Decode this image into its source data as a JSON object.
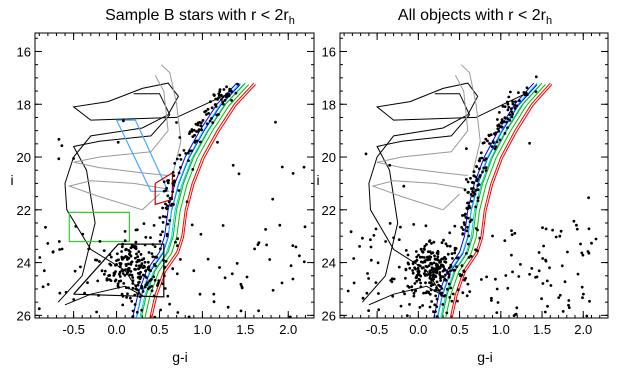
{
  "figure": {
    "panels": [
      {
        "title": "Sample B stars with r < 2r",
        "title_subscript": "h",
        "xlabel": "g-i",
        "ylabel": "i"
      },
      {
        "title": "All objects with r < 2r",
        "title_subscript": "h",
        "xlabel": "g-i",
        "ylabel": "i"
      }
    ]
  },
  "chart_data": [
    {
      "type": "scatter",
      "title": "Sample B stars with r < 2rh",
      "xlabel": "g-i",
      "ylabel": "i",
      "xlim": [
        -0.95,
        2.3
      ],
      "ylim": [
        26.1,
        15.3
      ],
      "y_inverted": true,
      "x_ticks": [
        -0.5,
        0.0,
        0.5,
        1.0,
        1.5,
        2.0
      ],
      "x_tick_labels": [
        "-0.5",
        "0.0",
        "0.5",
        "1.0",
        "1.5",
        "2.0"
      ],
      "y_ticks": [
        16,
        18,
        20,
        22,
        24,
        26
      ],
      "y_tick_labels": [
        "16",
        "18",
        "20",
        "22",
        "24",
        "26"
      ],
      "points": {
        "n_approx": 420,
        "sequence_turnoff": [
          0.2,
          24.1
        ],
        "red_giant_branch": [
          [
            0.55,
            23.0
          ],
          [
            0.6,
            22.0
          ],
          [
            0.68,
            21.0
          ],
          [
            0.78,
            20.0
          ],
          [
            0.95,
            19.0
          ],
          [
            1.15,
            18.0
          ],
          [
            1.35,
            17.3
          ]
        ],
        "field_scatter_xrange": [
          -0.9,
          2.2
        ]
      },
      "isochrones": {
        "black_tracks": 4,
        "gray_tracks": 3,
        "colored_rgb_models": [
          "#0000ff",
          "#00d0ff",
          "#00c000",
          "#ff0000"
        ]
      },
      "selection_boxes": [
        {
          "name": "blue box",
          "color": "#4aa8ff",
          "vertices": [
            [
              0.0,
              18.6
            ],
            [
              0.22,
              18.6
            ],
            [
              0.6,
              21.3
            ],
            [
              0.4,
              21.3
            ]
          ]
        },
        {
          "name": "red box",
          "color": "#cc0000",
          "vertices": [
            [
              0.45,
              21.0
            ],
            [
              0.65,
              20.6
            ],
            [
              0.65,
              21.6
            ],
            [
              0.45,
              21.8
            ]
          ]
        },
        {
          "name": "green box",
          "color": "#33cc33",
          "vertices": [
            [
              -0.55,
              22.1
            ],
            [
              0.15,
              22.1
            ],
            [
              0.15,
              23.2
            ],
            [
              -0.55,
              23.2
            ]
          ]
        },
        {
          "name": "black box",
          "color": "#000000",
          "vertices": [
            [
              -0.5,
              25.2
            ],
            [
              0.02,
              23.3
            ],
            [
              0.55,
              23.3
            ],
            [
              0.55,
              25.3
            ]
          ]
        }
      ]
    },
    {
      "type": "scatter",
      "title": "All objects with r < 2rh",
      "xlabel": "g-i",
      "ylabel": "i",
      "xlim": [
        -0.95,
        2.3
      ],
      "ylim": [
        26.1,
        15.3
      ],
      "y_inverted": true,
      "x_ticks": [
        -0.5,
        0.0,
        0.5,
        1.0,
        1.5,
        2.0
      ],
      "x_tick_labels": [
        "-0.5",
        "0.0",
        "0.5",
        "1.0",
        "1.5",
        "2.0"
      ],
      "y_ticks": [
        16,
        18,
        20,
        22,
        24,
        26
      ],
      "y_tick_labels": [
        "16",
        "18",
        "20",
        "22",
        "24",
        "26"
      ],
      "points": {
        "n_approx": 520,
        "sequence_turnoff": [
          0.2,
          24.1
        ],
        "red_giant_branch": [
          [
            0.55,
            23.0
          ],
          [
            0.6,
            22.0
          ],
          [
            0.68,
            21.0
          ],
          [
            0.78,
            20.0
          ],
          [
            0.95,
            19.0
          ],
          [
            1.15,
            18.0
          ],
          [
            1.35,
            17.3
          ]
        ],
        "field_scatter_xrange": [
          -0.9,
          2.2
        ]
      },
      "isochrones": {
        "black_tracks": 4,
        "gray_tracks": 3,
        "colored_rgb_models": [
          "#0000ff",
          "#00d0ff",
          "#00c000",
          "#ff0000"
        ]
      },
      "selection_boxes": []
    }
  ]
}
